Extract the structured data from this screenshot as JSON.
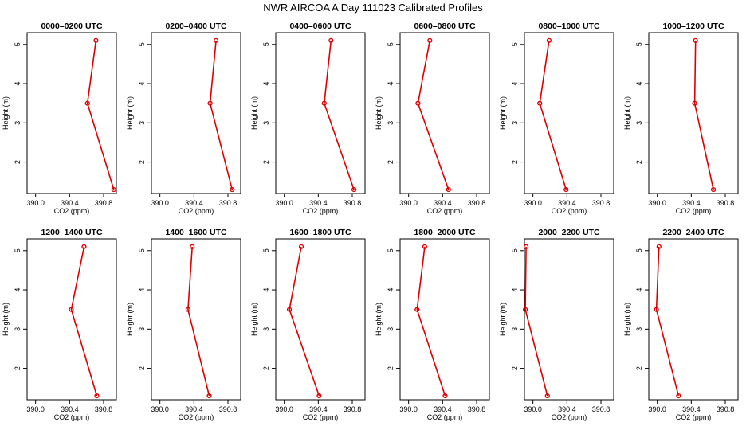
{
  "figure": {
    "title": "NWR AIRCOA A  Day 111023  Calibrated Profiles"
  },
  "colors": {
    "series": "#dd0000",
    "axes": "#000000",
    "background": "#ffffff"
  },
  "chart_data": [
    {
      "type": "line",
      "title": "0000–0200 UTC",
      "xlabel": "CO2 (ppm)",
      "ylabel": "Height (m)",
      "xlim": [
        389.9,
        390.95
      ],
      "ylim": [
        1.2,
        5.3
      ],
      "xticks": [
        390.0,
        390.4,
        390.8
      ],
      "xtick_labels": [
        "390.0",
        "390.4",
        "390.8"
      ],
      "yticks": [
        2,
        3,
        4,
        5
      ],
      "ytick_labels": [
        "2",
        "3",
        "4",
        "5"
      ],
      "series": [
        {
          "points": [
            {
              "x": 390.71,
              "y": 5.1
            },
            {
              "x": 390.61,
              "y": 3.5
            },
            {
              "x": 390.92,
              "y": 1.3
            }
          ]
        }
      ]
    },
    {
      "type": "line",
      "title": "0200–0400 UTC",
      "xlabel": "CO2 (ppm)",
      "ylabel": "Height (m)",
      "xlim": [
        389.9,
        390.95
      ],
      "ylim": [
        1.2,
        5.3
      ],
      "xticks": [
        390.0,
        390.4,
        390.8
      ],
      "xtick_labels": [
        "390.0",
        "390.4",
        "390.8"
      ],
      "yticks": [
        2,
        3,
        4,
        5
      ],
      "ytick_labels": [
        "2",
        "3",
        "4",
        "5"
      ],
      "series": [
        {
          "points": [
            {
              "x": 390.66,
              "y": 5.1
            },
            {
              "x": 390.59,
              "y": 3.5
            },
            {
              "x": 390.85,
              "y": 1.3
            }
          ]
        }
      ]
    },
    {
      "type": "line",
      "title": "0400–0600 UTC",
      "xlabel": "CO2 (ppm)",
      "ylabel": "Height (m)",
      "xlim": [
        389.9,
        390.95
      ],
      "ylim": [
        1.2,
        5.3
      ],
      "xticks": [
        390.0,
        390.4,
        390.8
      ],
      "xtick_labels": [
        "390.0",
        "390.4",
        "390.8"
      ],
      "yticks": [
        2,
        3,
        4,
        5
      ],
      "ytick_labels": [
        "2",
        "3",
        "4",
        "5"
      ],
      "series": [
        {
          "points": [
            {
              "x": 390.55,
              "y": 5.1
            },
            {
              "x": 390.47,
              "y": 3.5
            },
            {
              "x": 390.82,
              "y": 1.3
            }
          ]
        }
      ]
    },
    {
      "type": "line",
      "title": "0600–0800 UTC",
      "xlabel": "CO2 (ppm)",
      "ylabel": "Height (m)",
      "xlim": [
        389.9,
        390.95
      ],
      "ylim": [
        1.2,
        5.3
      ],
      "xticks": [
        390.0,
        390.4,
        390.8
      ],
      "xtick_labels": [
        "390.0",
        "390.4",
        "390.8"
      ],
      "yticks": [
        2,
        3,
        4,
        5
      ],
      "ytick_labels": [
        "2",
        "3",
        "4",
        "5"
      ],
      "series": [
        {
          "points": [
            {
              "x": 390.25,
              "y": 5.1
            },
            {
              "x": 390.11,
              "y": 3.5
            },
            {
              "x": 390.47,
              "y": 1.3
            }
          ]
        }
      ]
    },
    {
      "type": "line",
      "title": "0800–1000 UTC",
      "xlabel": "CO2 (ppm)",
      "ylabel": "Height (m)",
      "xlim": [
        389.9,
        390.95
      ],
      "ylim": [
        1.2,
        5.3
      ],
      "xticks": [
        390.0,
        390.4,
        390.8
      ],
      "xtick_labels": [
        "390.0",
        "390.4",
        "390.8"
      ],
      "yticks": [
        2,
        3,
        4,
        5
      ],
      "ytick_labels": [
        "2",
        "3",
        "4",
        "5"
      ],
      "series": [
        {
          "points": [
            {
              "x": 390.19,
              "y": 5.1
            },
            {
              "x": 390.08,
              "y": 3.5
            },
            {
              "x": 390.39,
              "y": 1.3
            }
          ]
        }
      ]
    },
    {
      "type": "line",
      "title": "1000–1200 UTC",
      "xlabel": "CO2 (ppm)",
      "ylabel": "Height (m)",
      "xlim": [
        389.9,
        390.95
      ],
      "ylim": [
        1.2,
        5.3
      ],
      "xticks": [
        390.0,
        390.4,
        390.8
      ],
      "xtick_labels": [
        "390.0",
        "390.4",
        "390.8"
      ],
      "yticks": [
        2,
        3,
        4,
        5
      ],
      "ytick_labels": [
        "2",
        "3",
        "4",
        "5"
      ],
      "series": [
        {
          "points": [
            {
              "x": 390.45,
              "y": 5.1
            },
            {
              "x": 390.44,
              "y": 3.5
            },
            {
              "x": 390.66,
              "y": 1.3
            }
          ]
        }
      ]
    },
    {
      "type": "line",
      "title": "1200–1400 UTC",
      "xlabel": "CO2 (ppm)",
      "ylabel": "Height (m)",
      "xlim": [
        389.9,
        390.95
      ],
      "ylim": [
        1.2,
        5.3
      ],
      "xticks": [
        390.0,
        390.4,
        390.8
      ],
      "xtick_labels": [
        "390.0",
        "390.4",
        "390.8"
      ],
      "yticks": [
        2,
        3,
        4,
        5
      ],
      "ytick_labels": [
        "2",
        "3",
        "4",
        "5"
      ],
      "series": [
        {
          "points": [
            {
              "x": 390.57,
              "y": 5.1
            },
            {
              "x": 390.42,
              "y": 3.5
            },
            {
              "x": 390.72,
              "y": 1.3
            }
          ]
        }
      ]
    },
    {
      "type": "line",
      "title": "1400–1600 UTC",
      "xlabel": "CO2 (ppm)",
      "ylabel": "Height (m)",
      "xlim": [
        389.9,
        390.95
      ],
      "ylim": [
        1.2,
        5.3
      ],
      "xticks": [
        390.0,
        390.4,
        390.8
      ],
      "xtick_labels": [
        "390.0",
        "390.4",
        "390.8"
      ],
      "yticks": [
        2,
        3,
        4,
        5
      ],
      "ytick_labels": [
        "2",
        "3",
        "4",
        "5"
      ],
      "series": [
        {
          "points": [
            {
              "x": 390.38,
              "y": 5.1
            },
            {
              "x": 390.33,
              "y": 3.5
            },
            {
              "x": 390.58,
              "y": 1.3
            }
          ]
        }
      ]
    },
    {
      "type": "line",
      "title": "1600–1800 UTC",
      "xlabel": "CO2 (ppm)",
      "ylabel": "Height (m)",
      "xlim": [
        389.9,
        390.95
      ],
      "ylim": [
        1.2,
        5.3
      ],
      "xticks": [
        390.0,
        390.4,
        390.8
      ],
      "xtick_labels": [
        "390.0",
        "390.4",
        "390.8"
      ],
      "yticks": [
        2,
        3,
        4,
        5
      ],
      "ytick_labels": [
        "2",
        "3",
        "4",
        "5"
      ],
      "series": [
        {
          "points": [
            {
              "x": 390.2,
              "y": 5.1
            },
            {
              "x": 390.06,
              "y": 3.5
            },
            {
              "x": 390.41,
              "y": 1.3
            }
          ]
        }
      ]
    },
    {
      "type": "line",
      "title": "1800–2000 UTC",
      "xlabel": "CO2 (ppm)",
      "ylabel": "Height (m)",
      "xlim": [
        389.9,
        390.95
      ],
      "ylim": [
        1.2,
        5.3
      ],
      "xticks": [
        390.0,
        390.4,
        390.8
      ],
      "xtick_labels": [
        "390.0",
        "390.4",
        "390.8"
      ],
      "yticks": [
        2,
        3,
        4,
        5
      ],
      "ytick_labels": [
        "2",
        "3",
        "4",
        "5"
      ],
      "series": [
        {
          "points": [
            {
              "x": 390.19,
              "y": 5.1
            },
            {
              "x": 390.1,
              "y": 3.5
            },
            {
              "x": 390.43,
              "y": 1.3
            }
          ]
        }
      ]
    },
    {
      "type": "line",
      "title": "2000–2200 UTC",
      "xlabel": "CO2 (ppm)",
      "ylabel": "Height (m)",
      "xlim": [
        389.9,
        390.95
      ],
      "ylim": [
        1.2,
        5.3
      ],
      "xticks": [
        390.0,
        390.4,
        390.8
      ],
      "xtick_labels": [
        "390.0",
        "390.4",
        "390.8"
      ],
      "yticks": [
        2,
        3,
        4,
        5
      ],
      "ytick_labels": [
        "2",
        "3",
        "4",
        "5"
      ],
      "series": [
        {
          "points": [
            {
              "x": 389.92,
              "y": 5.1
            },
            {
              "x": 389.91,
              "y": 3.5
            },
            {
              "x": 390.17,
              "y": 1.3
            }
          ]
        }
      ]
    },
    {
      "type": "line",
      "title": "2200–2400 UTC",
      "xlabel": "CO2 (ppm)",
      "ylabel": "Height (m)",
      "xlim": [
        389.9,
        390.95
      ],
      "ylim": [
        1.2,
        5.3
      ],
      "xticks": [
        390.0,
        390.4,
        390.8
      ],
      "xtick_labels": [
        "390.0",
        "390.4",
        "390.8"
      ],
      "yticks": [
        2,
        3,
        4,
        5
      ],
      "ytick_labels": [
        "2",
        "3",
        "4",
        "5"
      ],
      "series": [
        {
          "points": [
            {
              "x": 390.02,
              "y": 5.1
            },
            {
              "x": 389.99,
              "y": 3.5
            },
            {
              "x": 390.25,
              "y": 1.3
            }
          ]
        }
      ]
    }
  ]
}
